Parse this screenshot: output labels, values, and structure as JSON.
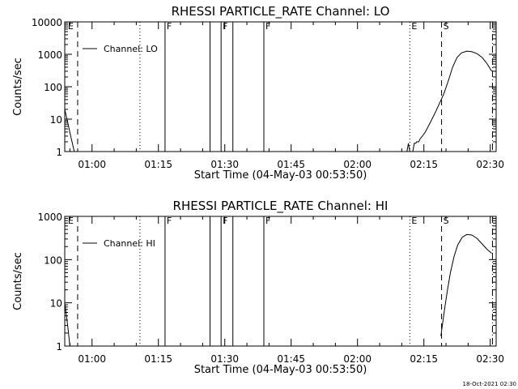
{
  "chart_data": [
    {
      "type": "line",
      "title": "RHESSI PARTICLE_RATE Channel: LO",
      "xlabel": "Start Time (04-May-03 00:53:50)",
      "ylabel": "Counts/sec",
      "y_scale": "log",
      "ylim": [
        1,
        10000
      ],
      "y_ticks": [
        "1",
        "10",
        "100",
        "1000",
        "10000"
      ],
      "x_ticks": [
        "01:00",
        "01:15",
        "01:30",
        "01:45",
        "02:00",
        "02:15",
        "02:30"
      ],
      "legend": {
        "label": "Channel: LO",
        "placement": "top-left"
      },
      "series": [
        {
          "name": "Channel: LO",
          "points": [
            [
              "00:53:50",
              20
            ],
            [
              "00:54:30",
              8
            ],
            [
              "00:55:10",
              3
            ],
            [
              "00:56:00",
              1
            ],
            [
              "02:11:10",
              1
            ],
            [
              "02:11:30",
              1.8
            ],
            [
              "02:11:50",
              1
            ],
            [
              "02:12:30",
              1
            ],
            [
              "02:12:50",
              1.8
            ],
            [
              "02:13:10",
              1.8
            ],
            [
              "02:13:20",
              2
            ],
            [
              "02:13:50",
              2
            ],
            [
              "02:14:10",
              2.5
            ],
            [
              "02:14:40",
              3
            ],
            [
              "02:15:20",
              4
            ],
            [
              "02:16:00",
              6
            ],
            [
              "02:16:50",
              10
            ],
            [
              "02:17:40",
              17
            ],
            [
              "02:18:30",
              30
            ],
            [
              "02:19:30",
              60
            ],
            [
              "02:20:30",
              150
            ],
            [
              "02:21:30",
              400
            ],
            [
              "02:22:30",
              800
            ],
            [
              "02:23:30",
              1100
            ],
            [
              "02:24:40",
              1250
            ],
            [
              "02:25:50",
              1200
            ],
            [
              "02:27:00",
              1050
            ],
            [
              "02:28:10",
              800
            ],
            [
              "02:29:20",
              500
            ],
            [
              "02:30:20",
              300
            ]
          ]
        }
      ],
      "markers": [
        {
          "time": "00:54:10",
          "label": "E"
        },
        {
          "time": "00:56:45",
          "label": "",
          "style": "dashed"
        },
        {
          "time": "01:10:50",
          "label": "",
          "style": "dotted"
        },
        {
          "time": "01:16:30",
          "label": "F",
          "style": "solid"
        },
        {
          "time": "01:26:40",
          "label": "",
          "style": "solid"
        },
        {
          "time": "01:29:10",
          "label": "F",
          "style": "solid"
        },
        {
          "time": "01:31:50",
          "label": "",
          "style": "solid"
        },
        {
          "time": "01:38:50",
          "label": "F",
          "style": "solid"
        },
        {
          "time": "02:11:50",
          "label": "E",
          "style": "dotted"
        },
        {
          "time": "02:19:00",
          "label": "S",
          "style": "dashed"
        },
        {
          "time": "02:30:30",
          "label": "",
          "style": "dashdot"
        }
      ]
    },
    {
      "type": "line",
      "title": "RHESSI PARTICLE_RATE Channel: HI",
      "xlabel": "Start Time (04-May-03 00:53:50)",
      "ylabel": "Counts/sec",
      "y_scale": "log",
      "ylim": [
        1,
        1000
      ],
      "y_ticks": [
        "1",
        "10",
        "100",
        "1000"
      ],
      "x_ticks": [
        "01:00",
        "01:15",
        "01:30",
        "01:45",
        "02:00",
        "02:15",
        "02:30"
      ],
      "legend": {
        "label": "Channel: HI",
        "placement": "top-left"
      },
      "series": [
        {
          "name": "Channel: HI",
          "points": [
            [
              "00:53:50",
              10
            ],
            [
              "00:54:30",
              3
            ],
            [
              "00:55:00",
              1
            ],
            [
              "02:18:50",
              1.7
            ],
            [
              "02:19:10",
              3
            ],
            [
              "02:19:40",
              7
            ],
            [
              "02:20:20",
              20
            ],
            [
              "02:21:00",
              50
            ],
            [
              "02:21:50",
              120
            ],
            [
              "02:22:40",
              220
            ],
            [
              "02:23:40",
              330
            ],
            [
              "02:24:40",
              380
            ],
            [
              "02:25:50",
              370
            ],
            [
              "02:27:00",
              310
            ],
            [
              "02:28:10",
              230
            ],
            [
              "02:29:20",
              170
            ],
            [
              "02:30:20",
              140
            ]
          ]
        }
      ],
      "markers": [
        {
          "time": "00:54:10",
          "label": "E"
        },
        {
          "time": "00:56:45",
          "label": "",
          "style": "dashed"
        },
        {
          "time": "01:10:50",
          "label": "",
          "style": "dotted"
        },
        {
          "time": "01:16:30",
          "label": "F",
          "style": "solid"
        },
        {
          "time": "01:26:40",
          "label": "",
          "style": "solid"
        },
        {
          "time": "01:29:10",
          "label": "F",
          "style": "solid"
        },
        {
          "time": "01:31:50",
          "label": "",
          "style": "solid"
        },
        {
          "time": "01:38:50",
          "label": "F",
          "style": "solid"
        },
        {
          "time": "02:11:50",
          "label": "E",
          "style": "dotted"
        },
        {
          "time": "02:19:00",
          "label": "S",
          "style": "dashed"
        },
        {
          "time": "02:30:30",
          "label": "",
          "style": "dashdot"
        }
      ]
    }
  ],
  "footer": {
    "stamp": "18-Oct-2021 02:30"
  }
}
